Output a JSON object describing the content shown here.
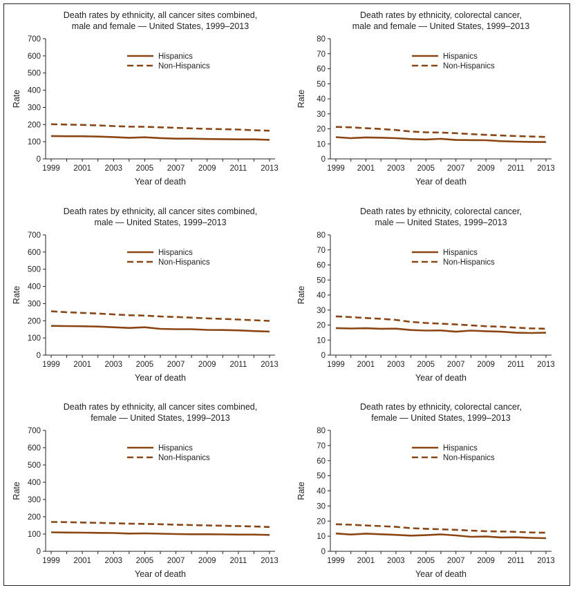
{
  "colors": {
    "series": "#8B4513",
    "axis": "#222222",
    "text": "#222222"
  },
  "chart_data": [
    {
      "type": "line",
      "title_lines": [
        "Death rates by ethnicity, all cancer sites combined,",
        "male and female — United States, 1999–2013"
      ],
      "xlabel": "Year of death",
      "ylabel": "Rate",
      "ylim": [
        0,
        700
      ],
      "yticks": [
        0,
        100,
        200,
        300,
        400,
        500,
        600,
        700
      ],
      "xticks": [
        1999,
        2001,
        2003,
        2005,
        2007,
        2009,
        2011,
        2013
      ],
      "x": [
        1999,
        2000,
        2001,
        2002,
        2003,
        2004,
        2005,
        2006,
        2007,
        2008,
        2009,
        2010,
        2011,
        2012,
        2013
      ],
      "legend_position": "top-center",
      "series": [
        {
          "name": "Hispanics",
          "style": "solid",
          "values": [
            133,
            132,
            132,
            130,
            127,
            123,
            126,
            121,
            118,
            118,
            116,
            115,
            114,
            114,
            111
          ]
        },
        {
          "name": "Non-Hispanics",
          "style": "dashed",
          "values": [
            202,
            200,
            198,
            195,
            191,
            188,
            187,
            184,
            181,
            178,
            175,
            173,
            171,
            167,
            164
          ]
        }
      ]
    },
    {
      "type": "line",
      "title_lines": [
        "Death rates by ethnicity, colorectal cancer,",
        "male and female — United States, 1999–2013"
      ],
      "xlabel": "Year of death",
      "ylabel": "Rate",
      "ylim": [
        0,
        80
      ],
      "yticks": [
        0,
        10,
        20,
        30,
        40,
        50,
        60,
        70,
        80
      ],
      "xticks": [
        1999,
        2001,
        2003,
        2005,
        2007,
        2009,
        2011,
        2013
      ],
      "x": [
        1999,
        2000,
        2001,
        2002,
        2003,
        2004,
        2005,
        2006,
        2007,
        2008,
        2009,
        2010,
        2011,
        2012,
        2013
      ],
      "legend_position": "top-center",
      "series": [
        {
          "name": "Hispanics",
          "style": "solid",
          "values": [
            14.5,
            13.8,
            14.3,
            14.1,
            13.8,
            13.2,
            12.9,
            13.4,
            12.6,
            12.5,
            12.4,
            11.8,
            11.5,
            11.3,
            11.2
          ]
        },
        {
          "name": "Non-Hispanics",
          "style": "dashed",
          "values": [
            21.3,
            21.0,
            20.4,
            19.9,
            19.2,
            18.2,
            17.7,
            17.5,
            17.1,
            16.5,
            16.0,
            15.6,
            15.2,
            14.9,
            14.6
          ]
        }
      ]
    },
    {
      "type": "line",
      "title_lines": [
        "Death rates by ethnicity, all cancer sites combined,",
        "male — United States, 1999–2013"
      ],
      "xlabel": "Year of death",
      "ylabel": "Rate",
      "ylim": [
        0,
        700
      ],
      "yticks": [
        0,
        100,
        200,
        300,
        400,
        500,
        600,
        700
      ],
      "xticks": [
        1999,
        2001,
        2003,
        2005,
        2007,
        2009,
        2011,
        2013
      ],
      "x": [
        1999,
        2000,
        2001,
        2002,
        2003,
        2004,
        2005,
        2006,
        2007,
        2008,
        2009,
        2010,
        2011,
        2012,
        2013
      ],
      "legend_position": "top-center",
      "series": [
        {
          "name": "Hispanics",
          "style": "solid",
          "values": [
            170,
            169,
            168,
            166,
            162,
            158,
            162,
            153,
            151,
            151,
            147,
            146,
            144,
            140,
            137
          ]
        },
        {
          "name": "Non-Hispanics",
          "style": "dashed",
          "values": [
            255,
            250,
            246,
            242,
            237,
            232,
            230,
            225,
            222,
            218,
            214,
            211,
            207,
            203,
            199
          ]
        }
      ]
    },
    {
      "type": "line",
      "title_lines": [
        "Death rates by ethnicity, colorectal cancer,",
        "male — United States, 1999–2013"
      ],
      "xlabel": "Year of death",
      "ylabel": "Rate",
      "ylim": [
        0,
        80
      ],
      "yticks": [
        0,
        10,
        20,
        30,
        40,
        50,
        60,
        70,
        80
      ],
      "xticks": [
        1999,
        2001,
        2003,
        2005,
        2007,
        2009,
        2011,
        2013
      ],
      "x": [
        1999,
        2000,
        2001,
        2002,
        2003,
        2004,
        2005,
        2006,
        2007,
        2008,
        2009,
        2010,
        2011,
        2012,
        2013
      ],
      "legend_position": "top-center",
      "series": [
        {
          "name": "Hispanics",
          "style": "solid",
          "values": [
            18.0,
            17.7,
            17.9,
            17.5,
            17.6,
            16.7,
            16.3,
            16.4,
            15.6,
            16.3,
            15.9,
            15.6,
            14.9,
            14.7,
            14.9
          ]
        },
        {
          "name": "Non-Hispanics",
          "style": "dashed",
          "values": [
            25.8,
            25.3,
            24.7,
            24.2,
            23.4,
            22.1,
            21.4,
            20.9,
            20.4,
            19.8,
            19.2,
            18.9,
            18.3,
            17.8,
            17.5
          ]
        }
      ]
    },
    {
      "type": "line",
      "title_lines": [
        "Death rates by ethnicity, all cancer sites combined,",
        "female — United States, 1999–2013"
      ],
      "xlabel": "Year of death",
      "ylabel": "Rate",
      "ylim": [
        0,
        700
      ],
      "yticks": [
        0,
        100,
        200,
        300,
        400,
        500,
        600,
        700
      ],
      "xticks": [
        1999,
        2001,
        2003,
        2005,
        2007,
        2009,
        2011,
        2013
      ],
      "x": [
        1999,
        2000,
        2001,
        2002,
        2003,
        2004,
        2005,
        2006,
        2007,
        2008,
        2009,
        2010,
        2011,
        2012,
        2013
      ],
      "legend_position": "top-center",
      "series": [
        {
          "name": "Hispanics",
          "style": "solid",
          "values": [
            110,
            109,
            108,
            107,
            106,
            103,
            104,
            102,
            100,
            99,
            99,
            98,
            97,
            97,
            95
          ]
        },
        {
          "name": "Non-Hispanics",
          "style": "dashed",
          "values": [
            170,
            169,
            167,
            165,
            163,
            160,
            159,
            157,
            154,
            152,
            150,
            148,
            146,
            144,
            141
          ]
        }
      ]
    },
    {
      "type": "line",
      "title_lines": [
        "Death rates by ethnicity, colorectal cancer,",
        "female — United States, 1999–2013"
      ],
      "xlabel": "Year of death",
      "ylabel": "Rate",
      "ylim": [
        0,
        80
      ],
      "yticks": [
        0,
        10,
        20,
        30,
        40,
        50,
        60,
        70,
        80
      ],
      "xticks": [
        1999,
        2001,
        2003,
        2005,
        2007,
        2009,
        2011,
        2013
      ],
      "x": [
        1999,
        2000,
        2001,
        2002,
        2003,
        2004,
        2005,
        2006,
        2007,
        2008,
        2009,
        2010,
        2011,
        2012,
        2013
      ],
      "legend_position": "top-center",
      "series": [
        {
          "name": "Hispanics",
          "style": "solid",
          "values": [
            11.8,
            11.1,
            11.7,
            11.3,
            10.9,
            10.4,
            10.7,
            11.2,
            10.5,
            9.6,
            9.8,
            9.2,
            9.3,
            8.9,
            8.7
          ]
        },
        {
          "name": "Non-Hispanics",
          "style": "dashed",
          "values": [
            17.9,
            17.6,
            17.1,
            16.7,
            16.2,
            15.3,
            14.9,
            14.6,
            14.2,
            13.7,
            13.3,
            13.1,
            12.9,
            12.5,
            12.3
          ]
        }
      ]
    }
  ]
}
